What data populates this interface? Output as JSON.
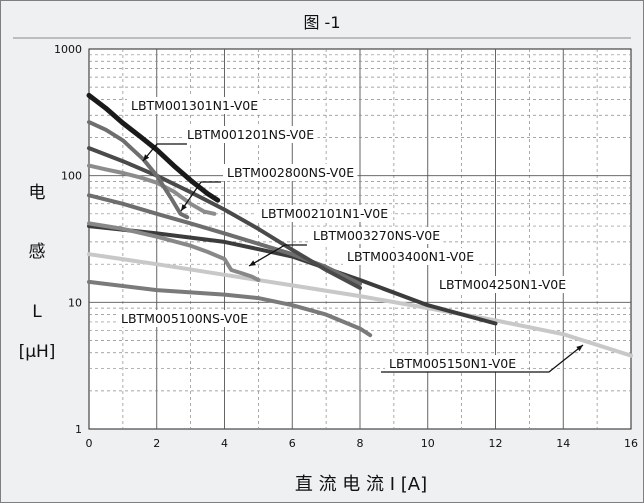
{
  "chart_data": {
    "type": "line",
    "title": "图 -1",
    "xlabel": "直 流 电 流 I [A]",
    "ylabel_lines": [
      "电",
      "感",
      "L",
      "[μH]"
    ],
    "x_scale": "linear",
    "y_scale": "log",
    "xlim": [
      0,
      16
    ],
    "ylim": [
      1,
      1000
    ],
    "x_ticks": [
      "0",
      "2",
      "4",
      "6",
      "8",
      "10",
      "12",
      "14",
      "16"
    ],
    "y_ticks": [
      "1",
      "10",
      "100",
      "1000"
    ],
    "grid": true,
    "series": [
      {
        "name": "LBTM001301N1-V0E",
        "color": "#1a1a1a",
        "width": 5,
        "x": [
          0,
          0.5,
          1,
          1.5,
          2,
          2.5,
          3,
          3.5,
          3.8
        ],
        "y": [
          430,
          340,
          260,
          205,
          160,
          120,
          92,
          72,
          64
        ]
      },
      {
        "name": "LBTM001201NS-V0E",
        "color": "#6e6e6e",
        "width": 4,
        "x": [
          0,
          0.5,
          1,
          1.3,
          1.6,
          2,
          2.4,
          2.7,
          2.9
        ],
        "y": [
          265,
          230,
          190,
          160,
          135,
          100,
          68,
          50,
          47
        ]
      },
      {
        "name": "LBTM002800NS-V0E",
        "color": "#8c8c8c",
        "width": 4,
        "x": [
          0,
          0.5,
          1,
          1.5,
          2,
          2.5,
          3,
          3.4,
          3.7
        ],
        "y": [
          120,
          112,
          105,
          97,
          88,
          75,
          60,
          52,
          50
        ]
      },
      {
        "name": "LBTM002101N1-V0E",
        "color": "#4a4a4a",
        "width": 4,
        "x": [
          0,
          1,
          2,
          3,
          4,
          5,
          6,
          7,
          8
        ],
        "y": [
          165,
          130,
          100,
          74,
          54,
          38,
          26,
          18,
          13
        ]
      },
      {
        "name": "LBTM003270NS-V0E",
        "color": "#888888",
        "width": 4,
        "x": [
          0,
          1,
          2,
          3,
          3.5,
          4,
          4.2,
          4.5,
          4.8,
          5
        ],
        "y": [
          42,
          38,
          33,
          28,
          25,
          22,
          18,
          17,
          16,
          15
        ]
      },
      {
        "name": "LBTM003400N1-V0E",
        "color": "#6e6e6e",
        "width": 4,
        "x": [
          0,
          1,
          2,
          3,
          4,
          5,
          6,
          7,
          8
        ],
        "y": [
          70,
          60,
          50,
          42,
          35,
          29,
          24,
          19,
          14
        ]
      },
      {
        "name": "LBTM004250N1-V0E",
        "color": "#3c3c3c",
        "width": 4,
        "x": [
          0,
          2,
          4,
          6,
          8,
          10,
          12
        ],
        "y": [
          40,
          35,
          30,
          23,
          15,
          9.5,
          6.8
        ]
      },
      {
        "name": "LBTM005150N1-V0E",
        "color": "#c8c8c8",
        "width": 4,
        "x": [
          0,
          2,
          4,
          6,
          8,
          10,
          12,
          14,
          16
        ],
        "y": [
          24,
          20,
          16.5,
          13.6,
          11.2,
          9,
          7.2,
          5.6,
          3.8
        ]
      },
      {
        "name": "LBTM005100NS-V0E",
        "color": "#7a7a7a",
        "width": 4,
        "x": [
          0,
          2,
          4,
          5,
          6,
          7,
          8,
          8.3
        ],
        "y": [
          14.5,
          12.5,
          11.5,
          10.8,
          9.5,
          8,
          6.2,
          5.5
        ]
      }
    ],
    "labels": [
      {
        "text": "LBTM001301N1-V0E"
      },
      {
        "text": "LBTM001201NS-V0E"
      },
      {
        "text": "LBTM002800NS-V0E"
      },
      {
        "text": "LBTM002101N1-V0E"
      },
      {
        "text": "LBTM003270NS-V0E"
      },
      {
        "text": "LBTM003400N1-V0E"
      },
      {
        "text": "LBTM004250N1-V0E"
      },
      {
        "text": "LBTM005100NS-V0E"
      },
      {
        "text": "LBTM005150N1-V0E"
      }
    ]
  }
}
